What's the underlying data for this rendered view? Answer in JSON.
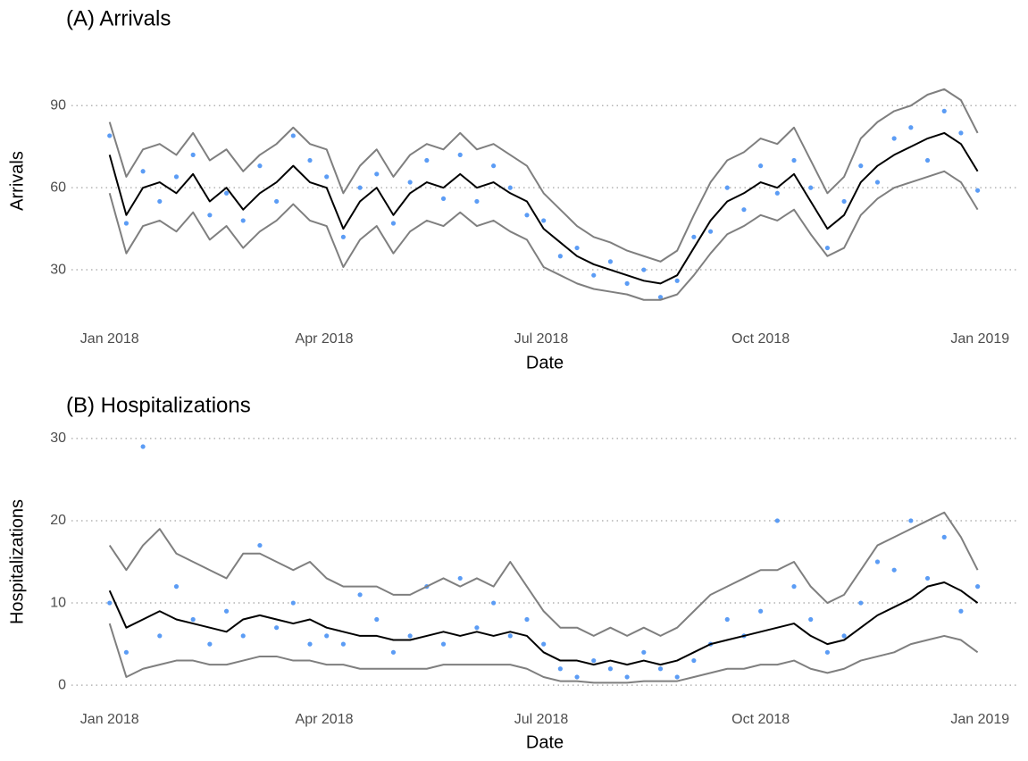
{
  "chart_data": [
    {
      "type": "line",
      "title": "(A) Arrivals",
      "x_label": "Date",
      "y_label": "Arrivals",
      "x": [
        0,
        7,
        14,
        21,
        28,
        35,
        42,
        49,
        56,
        63,
        70,
        77,
        84,
        91,
        98,
        105,
        112,
        119,
        126,
        133,
        140,
        147,
        154,
        161,
        168,
        175,
        182,
        189,
        196,
        203,
        210,
        217,
        224,
        231,
        238,
        245,
        252,
        259,
        266,
        273,
        280,
        287,
        294,
        301,
        308,
        315,
        322,
        329,
        336,
        343,
        350,
        357,
        364
      ],
      "xlim": [
        -16,
        381
      ],
      "xticks": [
        {
          "value": 0,
          "label": "Jan 2018"
        },
        {
          "value": 90,
          "label": "Apr 2018"
        },
        {
          "value": 181,
          "label": "Jul 2018"
        },
        {
          "value": 273,
          "label": "Oct 2018"
        },
        {
          "value": 365,
          "label": "Jan 2019"
        }
      ],
      "ylim": [
        15,
        110
      ],
      "yticks": [
        30,
        60,
        90
      ],
      "grid": true,
      "series": [
        {
          "mode": "markers",
          "color": "#5b9cf5",
          "values": [
            79,
            47,
            66,
            55,
            64,
            72,
            50,
            58,
            48,
            68,
            55,
            79,
            70,
            64,
            42,
            60,
            65,
            47,
            62,
            70,
            56,
            72,
            55,
            68,
            60,
            50,
            48,
            35,
            38,
            28,
            33,
            25,
            30,
            20,
            26,
            42,
            44,
            60,
            52,
            68,
            58,
            70,
            60,
            38,
            55,
            68,
            62,
            78,
            82,
            70,
            88,
            80,
            59
          ]
        },
        {
          "mode": "line",
          "color": "#7f7f7f",
          "values": [
            58,
            36,
            46,
            48,
            44,
            51,
            41,
            46,
            38,
            44,
            48,
            54,
            48,
            46,
            31,
            41,
            46,
            36,
            44,
            48,
            46,
            51,
            46,
            48,
            44,
            41,
            31,
            28,
            25,
            23,
            22,
            21,
            19,
            19,
            21,
            28,
            36,
            43,
            46,
            50,
            48,
            52,
            43,
            35,
            38,
            50,
            56,
            60,
            62,
            64,
            66,
            62,
            52
          ]
        },
        {
          "mode": "line",
          "color": "#7f7f7f",
          "values": [
            84,
            64,
            74,
            76,
            72,
            80,
            70,
            74,
            66,
            72,
            76,
            82,
            76,
            74,
            58,
            68,
            74,
            64,
            72,
            76,
            74,
            80,
            74,
            76,
            72,
            68,
            58,
            52,
            46,
            42,
            40,
            37,
            35,
            33,
            37,
            50,
            62,
            70,
            73,
            78,
            76,
            82,
            70,
            58,
            64,
            78,
            84,
            88,
            90,
            94,
            96,
            92,
            80
          ]
        },
        {
          "mode": "line",
          "color": "#000000",
          "values": [
            72,
            50,
            60,
            62,
            58,
            65,
            55,
            60,
            52,
            58,
            62,
            68,
            62,
            60,
            45,
            55,
            60,
            50,
            58,
            62,
            60,
            65,
            60,
            62,
            58,
            55,
            45,
            40,
            35,
            32,
            30,
            28,
            26,
            25,
            28,
            38,
            48,
            55,
            58,
            62,
            60,
            65,
            55,
            45,
            50,
            62,
            68,
            72,
            75,
            78,
            80,
            76,
            66
          ]
        }
      ]
    },
    {
      "type": "line",
      "title": "(B) Hospitalizations",
      "x_label": "Date",
      "y_label": "Hospitalizations",
      "x": [
        0,
        7,
        14,
        21,
        28,
        35,
        42,
        49,
        56,
        63,
        70,
        77,
        84,
        91,
        98,
        105,
        112,
        119,
        126,
        133,
        140,
        147,
        154,
        161,
        168,
        175,
        182,
        189,
        196,
        203,
        210,
        217,
        224,
        231,
        238,
        245,
        252,
        259,
        266,
        273,
        280,
        287,
        294,
        301,
        308,
        315,
        322,
        329,
        336,
        343,
        350,
        357,
        364
      ],
      "xlim": [
        -16,
        381
      ],
      "xticks": [
        {
          "value": 0,
          "label": "Jan 2018"
        },
        {
          "value": 90,
          "label": "Apr 2018"
        },
        {
          "value": 181,
          "label": "Jul 2018"
        },
        {
          "value": 273,
          "label": "Oct 2018"
        },
        {
          "value": 365,
          "label": "Jan 2019"
        }
      ],
      "ylim": [
        -1.5,
        31.5
      ],
      "yticks": [
        0,
        10,
        20,
        30
      ],
      "grid": true,
      "series": [
        {
          "mode": "markers",
          "color": "#5b9cf5",
          "values": [
            10,
            4,
            29,
            6,
            12,
            8,
            5,
            9,
            6,
            17,
            7,
            10,
            5,
            6,
            5,
            11,
            8,
            4,
            6,
            12,
            5,
            13,
            7,
            10,
            6,
            8,
            5,
            2,
            1,
            3,
            2,
            1,
            4,
            2,
            1,
            3,
            5,
            8,
            6,
            9,
            20,
            12,
            8,
            4,
            6,
            10,
            15,
            14,
            20,
            13,
            18,
            9,
            12
          ]
        },
        {
          "mode": "line",
          "color": "#7f7f7f",
          "values": [
            7.5,
            1,
            2,
            2.5,
            3,
            3,
            2.5,
            2.5,
            3,
            3.5,
            3.5,
            3,
            3,
            2.5,
            2.5,
            2,
            2,
            2,
            2,
            2,
            2.5,
            2.5,
            2.5,
            2.5,
            2.5,
            2,
            1,
            0.5,
            0.5,
            0.3,
            0.3,
            0.3,
            0.5,
            0.5,
            0.5,
            1,
            1.5,
            2,
            2,
            2.5,
            2.5,
            3,
            2,
            1.5,
            2,
            3,
            3.5,
            4,
            5,
            5.5,
            6,
            5.5,
            4
          ]
        },
        {
          "mode": "line",
          "color": "#7f7f7f",
          "values": [
            17,
            14,
            17,
            19,
            16,
            15,
            14,
            13,
            16,
            16,
            15,
            14,
            15,
            13,
            12,
            12,
            12,
            11,
            11,
            12,
            13,
            12,
            13,
            12,
            15,
            12,
            9,
            7,
            7,
            6,
            7,
            6,
            7,
            6,
            7,
            9,
            11,
            12,
            13,
            14,
            14,
            15,
            12,
            10,
            11,
            14,
            17,
            18,
            19,
            20,
            21,
            18,
            14
          ]
        },
        {
          "mode": "line",
          "color": "#000000",
          "values": [
            11.5,
            7,
            8,
            9,
            8,
            7.5,
            7,
            6.5,
            8,
            8.5,
            8,
            7.5,
            8,
            7,
            6.5,
            6,
            6,
            5.5,
            5.5,
            6,
            6.5,
            6,
            6.5,
            6,
            6.5,
            6,
            4,
            3,
            3,
            2.5,
            3,
            2.5,
            3,
            2.5,
            3,
            4,
            5,
            5.5,
            6,
            6.5,
            7,
            7.5,
            6,
            5,
            5.5,
            7,
            8.5,
            9.5,
            10.5,
            12,
            12.5,
            11.5,
            10
          ]
        }
      ]
    }
  ]
}
